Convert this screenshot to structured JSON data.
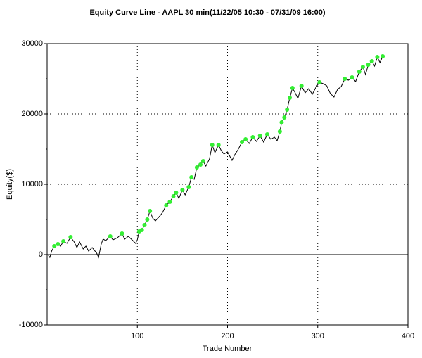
{
  "chart_data": {
    "type": "line",
    "title": "Equity Curve Line - AAPL 30 min(11/22/05 10:30 - 07/31/09 16:00)",
    "x_label": "Trade Number",
    "y_label": "Equity($)",
    "xlim": [
      0,
      400
    ],
    "xticks": [
      100,
      200,
      300,
      400
    ],
    "ylim": [
      -10000,
      30000
    ],
    "yticks": [
      -10000,
      0,
      10000,
      20000,
      30000
    ],
    "yminorticks": [
      -5000,
      5000,
      15000,
      25000
    ],
    "grid": true,
    "color": "#000000",
    "x": [
      1,
      3,
      5,
      8,
      12,
      15,
      18,
      22,
      26,
      30,
      33,
      36,
      40,
      43,
      46,
      50,
      55,
      57,
      60,
      62,
      65,
      70,
      73,
      78,
      83,
      86,
      90,
      95,
      98,
      100,
      102,
      105,
      108,
      111,
      114,
      117,
      120,
      125,
      128,
      132,
      136,
      140,
      143,
      146,
      150,
      153,
      157,
      160,
      163,
      166,
      170,
      173,
      176,
      180,
      183,
      186,
      190,
      193,
      196,
      200,
      205,
      208,
      212,
      216,
      220,
      224,
      228,
      232,
      236,
      240,
      244,
      248,
      252,
      255,
      258,
      260,
      263,
      266,
      269,
      272,
      275,
      278,
      282,
      286,
      290,
      294,
      298,
      302,
      306,
      310,
      314,
      318,
      322,
      326,
      330,
      334,
      338,
      342,
      346,
      350,
      353,
      356,
      360,
      363,
      366,
      369,
      372
    ],
    "values": [
      0,
      -400,
      500,
      1200,
      1500,
      1200,
      1900,
      1600,
      2500,
      1800,
      1000,
      1800,
      800,
      1200,
      500,
      1000,
      200,
      -400,
      1500,
      2200,
      2000,
      2600,
      2100,
      2400,
      3000,
      2200,
      2600,
      2000,
      1600,
      2100,
      3300,
      3500,
      4200,
      5000,
      6200,
      5200,
      4800,
      5500,
      6000,
      7000,
      7500,
      8300,
      8800,
      8000,
      9200,
      8500,
      9600,
      11000,
      10700,
      12400,
      12800,
      13300,
      12600,
      13600,
      15600,
      14500,
      15600,
      14800,
      14300,
      14600,
      13400,
      14200,
      15000,
      16000,
      16400,
      15800,
      16700,
      16100,
      16900,
      16000,
      17100,
      16400,
      16700,
      16200,
      17500,
      18800,
      19500,
      20600,
      22300,
      23700,
      23000,
      22200,
      24000,
      23000,
      23600,
      22800,
      23800,
      24500,
      24300,
      24000,
      22900,
      22400,
      23500,
      23900,
      25000,
      24800,
      25200,
      24600,
      26000,
      26700,
      25600,
      27000,
      27500,
      26800,
      28100,
      27300,
      28200
    ],
    "highlight": {
      "color": "#33ee33",
      "x": [
        8,
        12,
        18,
        26,
        70,
        83,
        102,
        105,
        108,
        111,
        114,
        132,
        136,
        140,
        143,
        150,
        157,
        160,
        166,
        170,
        173,
        183,
        190,
        216,
        220,
        228,
        236,
        244,
        258,
        260,
        263,
        266,
        269,
        272,
        282,
        302,
        330,
        338,
        346,
        350,
        356,
        360,
        366,
        372
      ],
      "values": [
        1200,
        1500,
        1900,
        2500,
        2600,
        3000,
        3300,
        3500,
        4200,
        5000,
        6200,
        7000,
        7500,
        8300,
        8800,
        9200,
        9600,
        11000,
        12400,
        12800,
        13300,
        15600,
        15600,
        16000,
        16400,
        16700,
        16900,
        17100,
        17500,
        18800,
        19500,
        20600,
        22300,
        23700,
        24000,
        24500,
        25000,
        25200,
        26000,
        26700,
        27000,
        27500,
        28100,
        28200
      ]
    }
  }
}
